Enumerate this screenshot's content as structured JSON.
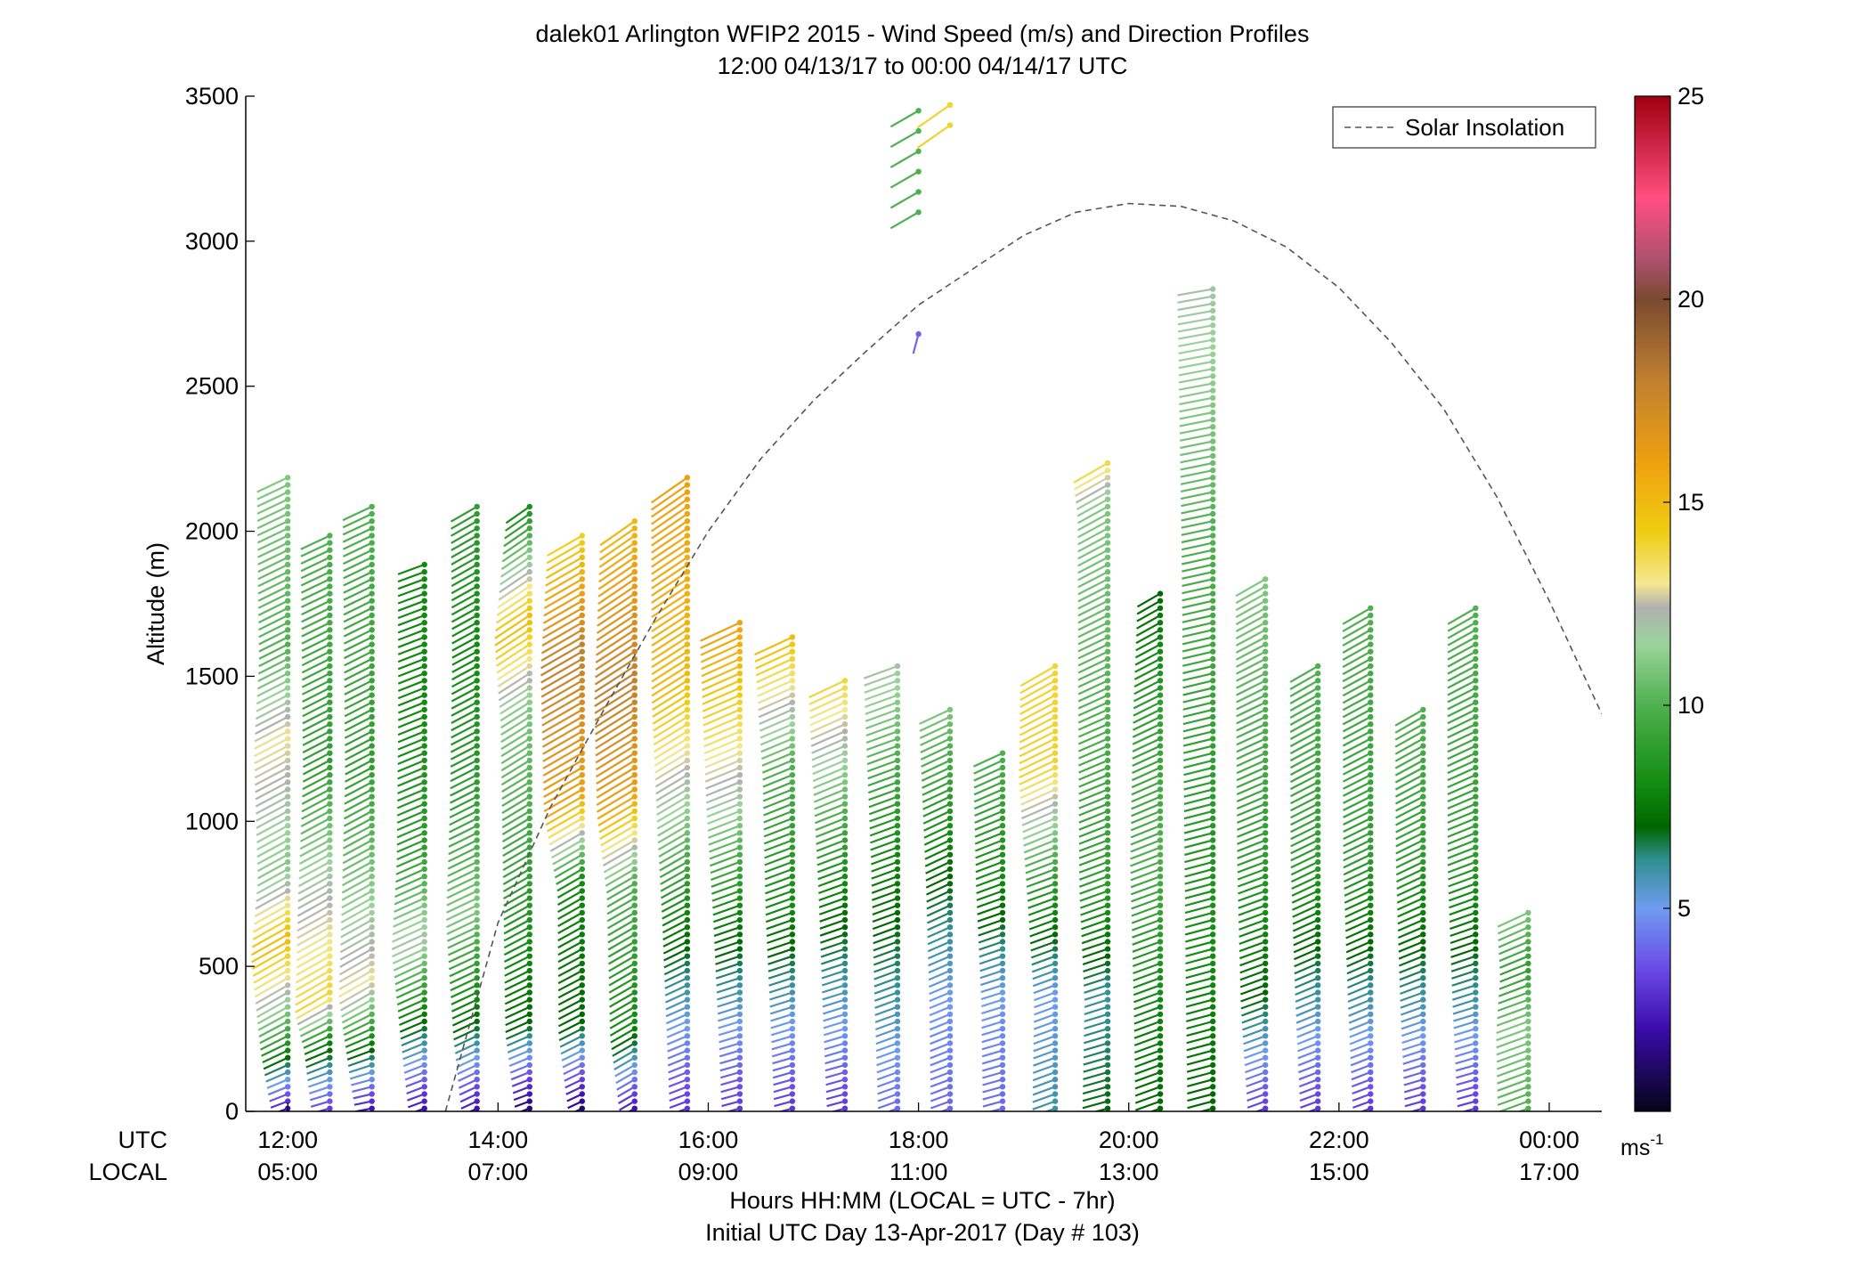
{
  "chart_data": {
    "type": "wind_barb_profile",
    "title": "dalek01 Arlington WFIP2 2015 - Wind Speed (m/s) and Direction Profiles",
    "subtitle": "12:00 04/13/17 to 00:00 04/14/17  UTC",
    "ylabel": "Altitude (m)",
    "ylim": [
      0,
      3500
    ],
    "y_ticks": [
      "0",
      "500",
      "1000",
      "1500",
      "2000",
      "2500",
      "3000",
      "3500"
    ],
    "xlim_hours": [
      11.6,
      24.5
    ],
    "x_ticks_hours": [
      12,
      14,
      16,
      18,
      20,
      22,
      24
    ],
    "x_tick_labels_utc": [
      "12:00",
      "14:00",
      "16:00",
      "18:00",
      "20:00",
      "22:00",
      "00:00"
    ],
    "x_tick_labels_local": [
      "05:00",
      "07:00",
      "09:00",
      "11:00",
      "13:00",
      "15:00",
      "17:00"
    ],
    "row_label_utc": "UTC",
    "row_label_local": "LOCAL",
    "xlabel": "Hours HH:MM  (LOCAL = UTC - 7hr)",
    "xlabel2": "Initial UTC Day 13-Apr-2017 (Day # 103)",
    "legend": {
      "label": "Solar Insolation",
      "placement": "top-right"
    },
    "colorbar": {
      "range": [
        0,
        25
      ],
      "ticks": [
        "5",
        "10",
        "15",
        "20",
        "25"
      ],
      "unit": "ms-1",
      "stops": [
        {
          "v": 0,
          "c": "#050518"
        },
        {
          "v": 2,
          "c": "#3a0aa8"
        },
        {
          "v": 3.5,
          "c": "#6a4ae6"
        },
        {
          "v": 5,
          "c": "#6f9cf0"
        },
        {
          "v": 6.2,
          "c": "#2f8f8f"
        },
        {
          "v": 7,
          "c": "#006600"
        },
        {
          "v": 8,
          "c": "#108a10"
        },
        {
          "v": 10,
          "c": "#4fb04f"
        },
        {
          "v": 11.5,
          "c": "#9ad39a"
        },
        {
          "v": 12.4,
          "c": "#b0b0b0"
        },
        {
          "v": 13,
          "c": "#f4e890"
        },
        {
          "v": 14.3,
          "c": "#f0cc10"
        },
        {
          "v": 16,
          "c": "#eea010"
        },
        {
          "v": 18,
          "c": "#c08030"
        },
        {
          "v": 20,
          "c": "#7a4a30"
        },
        {
          "v": 21,
          "c": "#b05070"
        },
        {
          "v": 22.5,
          "c": "#ff4f80"
        },
        {
          "v": 25,
          "c": "#a00010"
        }
      ]
    },
    "solar_insolation_curve": [
      [
        13.5,
        0
      ],
      [
        14.0,
        650
      ],
      [
        14.5,
        1050
      ],
      [
        15.0,
        1380
      ],
      [
        15.5,
        1700
      ],
      [
        16.0,
        2000
      ],
      [
        16.5,
        2250
      ],
      [
        17.0,
        2450
      ],
      [
        17.5,
        2620
      ],
      [
        18.0,
        2780
      ],
      [
        18.5,
        2900
      ],
      [
        19.0,
        3020
      ],
      [
        19.5,
        3100
      ],
      [
        20.0,
        3130
      ],
      [
        20.5,
        3120
      ],
      [
        21.0,
        3070
      ],
      [
        21.5,
        2980
      ],
      [
        22.0,
        2840
      ],
      [
        22.5,
        2650
      ],
      [
        23.0,
        2420
      ],
      [
        23.5,
        2120
      ],
      [
        24.0,
        1760
      ],
      [
        24.5,
        1370
      ]
    ],
    "profiles": [
      {
        "t": 12.0,
        "top": 2200,
        "levels": [
          [
            0,
            2
          ],
          [
            250,
            9
          ],
          [
            400,
            12
          ],
          [
            600,
            15
          ],
          [
            850,
            11
          ],
          [
            1300,
            13
          ],
          [
            1600,
            10
          ],
          [
            2200,
            11
          ]
        ],
        "dir": [
          [
            0,
            250
          ],
          [
            400,
            240
          ],
          [
            2200,
            245
          ]
        ]
      },
      {
        "t": 12.4,
        "top": 2000,
        "levels": [
          [
            0,
            3
          ],
          [
            250,
            8
          ],
          [
            400,
            14
          ],
          [
            800,
            12
          ],
          [
            1200,
            9
          ],
          [
            2000,
            10
          ]
        ],
        "dir": [
          [
            0,
            255
          ],
          [
            400,
            240
          ],
          [
            2000,
            245
          ]
        ]
      },
      {
        "t": 12.8,
        "top": 2100,
        "levels": [
          [
            0,
            2
          ],
          [
            250,
            8
          ],
          [
            450,
            13
          ],
          [
            800,
            11
          ],
          [
            1200,
            9
          ],
          [
            2100,
            10
          ]
        ],
        "dir": [
          [
            0,
            260
          ],
          [
            400,
            240
          ],
          [
            2100,
            245
          ]
        ]
      },
      {
        "t": 13.3,
        "top": 1900,
        "levels": [
          [
            0,
            2
          ],
          [
            300,
            7
          ],
          [
            600,
            12
          ],
          [
            900,
            9
          ],
          [
            1400,
            8
          ],
          [
            1900,
            8
          ]
        ],
        "dir": [
          [
            0,
            250
          ],
          [
            500,
            245
          ],
          [
            1900,
            250
          ]
        ]
      },
      {
        "t": 13.8,
        "top": 2100,
        "levels": [
          [
            0,
            2
          ],
          [
            300,
            7
          ],
          [
            700,
            11
          ],
          [
            1100,
            9
          ],
          [
            1600,
            8
          ],
          [
            2100,
            9
          ]
        ],
        "dir": [
          [
            0,
            245
          ],
          [
            600,
            245
          ],
          [
            2100,
            240
          ]
        ]
      },
      {
        "t": 14.3,
        "top": 2100,
        "levels": [
          [
            0,
            1
          ],
          [
            300,
            7
          ],
          [
            800,
            9
          ],
          [
            1400,
            11
          ],
          [
            1700,
            15
          ],
          [
            2100,
            8
          ]
        ],
        "dir": [
          [
            0,
            250
          ],
          [
            800,
            240
          ],
          [
            2100,
            235
          ]
        ]
      },
      {
        "t": 14.8,
        "top": 2000,
        "levels": [
          [
            0,
            1
          ],
          [
            300,
            7
          ],
          [
            800,
            8
          ],
          [
            1100,
            16
          ],
          [
            1600,
            18
          ],
          [
            2000,
            14
          ]
        ],
        "dir": [
          [
            0,
            245
          ],
          [
            800,
            240
          ],
          [
            2000,
            240
          ]
        ]
      },
      {
        "t": 15.3,
        "top": 2050,
        "levels": [
          [
            0,
            2
          ],
          [
            300,
            8
          ],
          [
            800,
            10
          ],
          [
            1100,
            16
          ],
          [
            1500,
            18
          ],
          [
            2050,
            15
          ]
        ],
        "dir": [
          [
            0,
            240
          ],
          [
            900,
            240
          ],
          [
            2050,
            235
          ]
        ]
      },
      {
        "t": 15.8,
        "top": 2200,
        "levels": [
          [
            0,
            3
          ],
          [
            300,
            5
          ],
          [
            700,
            8
          ],
          [
            1000,
            11
          ],
          [
            1500,
            15
          ],
          [
            2200,
            16
          ]
        ],
        "dir": [
          [
            0,
            250
          ],
          [
            900,
            240
          ],
          [
            2200,
            235
          ]
        ]
      },
      {
        "t": 16.3,
        "top": 1700,
        "levels": [
          [
            0,
            3
          ],
          [
            300,
            5
          ],
          [
            700,
            8
          ],
          [
            1100,
            12
          ],
          [
            1700,
            16
          ]
        ],
        "dir": [
          [
            0,
            255
          ],
          [
            800,
            250
          ],
          [
            1700,
            245
          ]
        ]
      },
      {
        "t": 16.8,
        "top": 1650,
        "levels": [
          [
            0,
            3
          ],
          [
            300,
            5
          ],
          [
            700,
            8
          ],
          [
            1200,
            10
          ],
          [
            1650,
            15
          ]
        ],
        "dir": [
          [
            0,
            255
          ],
          [
            800,
            250
          ],
          [
            1650,
            245
          ]
        ]
      },
      {
        "t": 17.3,
        "top": 1500,
        "levels": [
          [
            0,
            3
          ],
          [
            300,
            5
          ],
          [
            800,
            8
          ],
          [
            1500,
            14
          ]
        ],
        "dir": [
          [
            0,
            255
          ],
          [
            800,
            250
          ],
          [
            1500,
            245
          ]
        ]
      },
      {
        "t": 17.8,
        "top": 1550,
        "levels": [
          [
            0,
            4
          ],
          [
            400,
            6
          ],
          [
            900,
            8
          ],
          [
            1550,
            12
          ]
        ],
        "dir": [
          [
            0,
            250
          ],
          [
            800,
            250
          ],
          [
            1550,
            250
          ]
        ]
      },
      {
        "t": 18.3,
        "top": 1400,
        "levels": [
          [
            0,
            4
          ],
          [
            400,
            5
          ],
          [
            800,
            7
          ],
          [
            1400,
            11
          ]
        ],
        "dir": [
          [
            0,
            250
          ],
          [
            800,
            245
          ],
          [
            1400,
            245
          ]
        ]
      },
      {
        "t": 18.8,
        "top": 1250,
        "levels": [
          [
            0,
            4
          ],
          [
            400,
            5
          ],
          [
            800,
            8
          ],
          [
            1250,
            10
          ]
        ],
        "dir": [
          [
            0,
            255
          ],
          [
            800,
            250
          ],
          [
            1250,
            245
          ]
        ]
      },
      {
        "t": 19.3,
        "top": 1550,
        "levels": [
          [
            0,
            6
          ],
          [
            400,
            5
          ],
          [
            800,
            9
          ],
          [
            1200,
            14
          ],
          [
            1550,
            14
          ]
        ],
        "dir": [
          [
            0,
            250
          ],
          [
            800,
            250
          ],
          [
            1550,
            240
          ]
        ]
      },
      {
        "t": 19.8,
        "top": 2250,
        "levels": [
          [
            0,
            7
          ],
          [
            400,
            6
          ],
          [
            800,
            9
          ],
          [
            1400,
            10
          ],
          [
            2100,
            11
          ],
          [
            2250,
            14
          ]
        ],
        "dir": [
          [
            0,
            255
          ],
          [
            800,
            250
          ],
          [
            2250,
            240
          ]
        ]
      },
      {
        "t": 20.3,
        "top": 1800,
        "levels": [
          [
            0,
            7
          ],
          [
            400,
            8
          ],
          [
            900,
            10
          ],
          [
            1400,
            9
          ],
          [
            1800,
            7
          ]
        ],
        "dir": [
          [
            0,
            250
          ],
          [
            800,
            250
          ],
          [
            1800,
            240
          ]
        ]
      },
      {
        "t": 20.8,
        "top": 2850,
        "levels": [
          [
            0,
            7
          ],
          [
            500,
            8
          ],
          [
            1200,
            9
          ],
          [
            2000,
            10
          ],
          [
            2850,
            12
          ]
        ],
        "dir": [
          [
            0,
            255
          ],
          [
            800,
            255
          ],
          [
            2850,
            260
          ]
        ]
      },
      {
        "t": 21.3,
        "top": 1850,
        "levels": [
          [
            0,
            3
          ],
          [
            400,
            7
          ],
          [
            900,
            9
          ],
          [
            1400,
            10
          ],
          [
            1850,
            11
          ]
        ],
        "dir": [
          [
            0,
            250
          ],
          [
            800,
            250
          ],
          [
            1850,
            240
          ]
        ]
      },
      {
        "t": 21.8,
        "top": 1550,
        "levels": [
          [
            0,
            3
          ],
          [
            400,
            6
          ],
          [
            900,
            9
          ],
          [
            1550,
            10
          ]
        ],
        "dir": [
          [
            0,
            250
          ],
          [
            800,
            245
          ],
          [
            1550,
            240
          ]
        ]
      },
      {
        "t": 22.3,
        "top": 1750,
        "levels": [
          [
            0,
            3
          ],
          [
            400,
            6
          ],
          [
            900,
            9
          ],
          [
            1750,
            10
          ]
        ],
        "dir": [
          [
            0,
            250
          ],
          [
            800,
            245
          ],
          [
            1750,
            240
          ]
        ]
      },
      {
        "t": 22.8,
        "top": 1400,
        "levels": [
          [
            0,
            3
          ],
          [
            400,
            6
          ],
          [
            900,
            9
          ],
          [
            1400,
            10
          ]
        ],
        "dir": [
          [
            0,
            255
          ],
          [
            800,
            245
          ],
          [
            1400,
            240
          ]
        ]
      },
      {
        "t": 23.3,
        "top": 1750,
        "levels": [
          [
            0,
            3
          ],
          [
            400,
            6
          ],
          [
            900,
            9
          ],
          [
            1750,
            10
          ]
        ],
        "dir": [
          [
            0,
            255
          ],
          [
            800,
            250
          ],
          [
            1750,
            240
          ]
        ]
      },
      {
        "t": 23.8,
        "top": 700,
        "levels": [
          [
            0,
            10
          ],
          [
            300,
            11
          ],
          [
            500,
            9
          ],
          [
            700,
            11
          ]
        ],
        "dir": [
          [
            0,
            250
          ],
          [
            400,
            250
          ],
          [
            700,
            245
          ]
        ]
      }
    ],
    "upper_profiles": [
      {
        "t": 18.0,
        "levels": [
          [
            3100,
            10
          ],
          [
            3480,
            10
          ]
        ],
        "dir": [
          [
            3100,
            240
          ],
          [
            3480,
            240
          ]
        ]
      },
      {
        "t": 18.3,
        "levels": [
          [
            3400,
            14
          ],
          [
            3480,
            14
          ]
        ],
        "dir": [
          [
            3400,
            235
          ],
          [
            3480,
            235
          ]
        ]
      }
    ],
    "isolated_barbs": [
      {
        "t": 18.0,
        "alt": 2680,
        "speed": 4,
        "dir": 195
      }
    ]
  }
}
